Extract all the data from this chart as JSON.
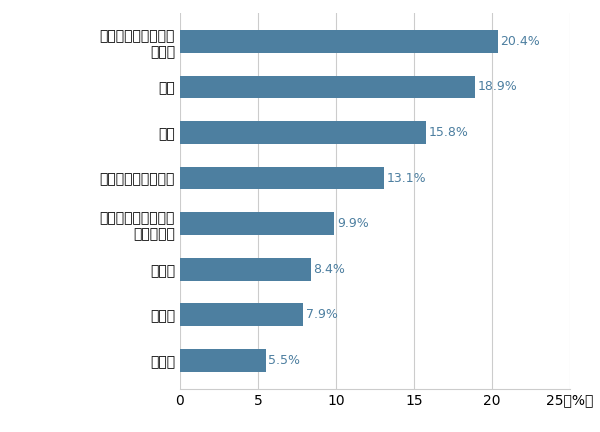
{
  "categories": [
    "食費や日用品などの\n生活費",
    "家賃",
    "貯金",
    "推し活にかかる費用",
    "推し活以外の趣味に\nかかる費用",
    "光熱費",
    "交際費",
    "その他"
  ],
  "values": [
    20.4,
    18.9,
    15.8,
    13.1,
    9.9,
    8.4,
    7.9,
    5.5
  ],
  "labels": [
    "20.4%",
    "18.9%",
    "15.8%",
    "13.1%",
    "9.9%",
    "8.4%",
    "7.9%",
    "5.5%"
  ],
  "bar_color": "#4d7fa0",
  "label_color": "#4d7fa0",
  "background_color": "#ffffff",
  "xlim": [
    0,
    25
  ],
  "xticks": [
    0,
    5,
    10,
    15,
    20,
    25
  ],
  "grid_color": "#cccccc",
  "bar_height": 0.5,
  "tick_fontsize": 10,
  "label_fontsize": 9,
  "ytick_fontsize": 10
}
